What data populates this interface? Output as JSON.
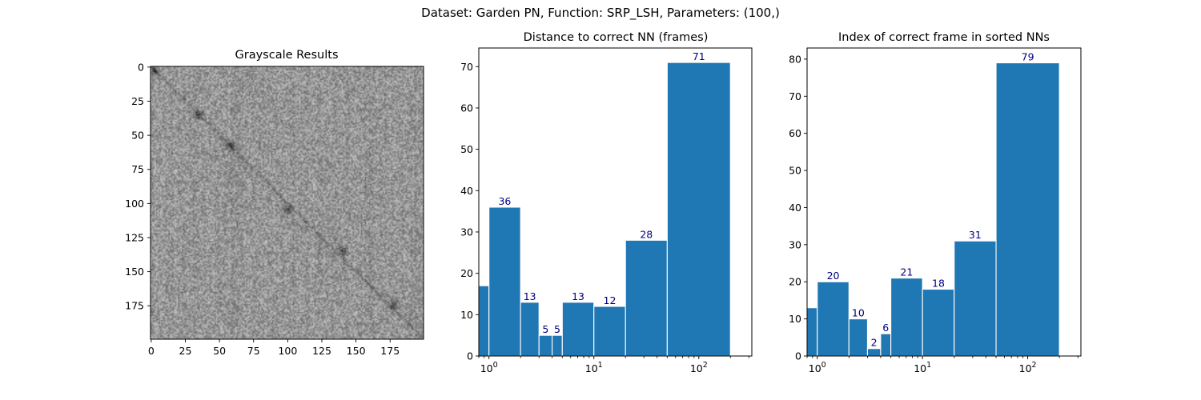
{
  "figure": {
    "suptitle": "Dataset:  Garden PN,  Function:  SRP_LSH, Parameters: (100,)"
  },
  "chart_data": [
    {
      "type": "heatmap",
      "title": "Grayscale Results",
      "colormap": "gray",
      "rows": 200,
      "cols": 200,
      "xlim": [
        0,
        200
      ],
      "ylim": [
        200,
        0
      ],
      "xticks": [
        0,
        25,
        50,
        75,
        100,
        125,
        150,
        175
      ],
      "yticks": [
        0,
        25,
        50,
        75,
        100,
        125,
        150,
        175
      ],
      "features": {
        "diagonal": "faint dark diagonal from (0,0) to (200,200)",
        "dark_spots": [
          [
            3,
            3
          ],
          [
            35,
            35
          ],
          [
            58,
            58
          ],
          [
            100,
            105
          ],
          [
            140,
            135
          ],
          [
            178,
            175
          ]
        ]
      }
    },
    {
      "type": "bar",
      "title": "Distance to correct NN (frames)",
      "xscale": "log",
      "xlim": [
        0.8,
        320
      ],
      "ylim": [
        0,
        74.5
      ],
      "yticks": [
        0,
        10,
        20,
        30,
        40,
        50,
        60,
        70
      ],
      "xticks": [
        "10^0",
        "10^1",
        "10^2"
      ],
      "bins": [
        {
          "x0": 0.5,
          "x1": 1,
          "value": 17,
          "label": ""
        },
        {
          "x0": 1,
          "x1": 2,
          "value": 36,
          "label": "36"
        },
        {
          "x0": 2,
          "x1": 3,
          "value": 13,
          "label": "13"
        },
        {
          "x0": 3,
          "x1": 4,
          "value": 5,
          "label": "5"
        },
        {
          "x0": 4,
          "x1": 5,
          "value": 5,
          "label": "5"
        },
        {
          "x0": 5,
          "x1": 10,
          "value": 13,
          "label": "13"
        },
        {
          "x0": 10,
          "x1": 20,
          "value": 12,
          "label": "12"
        },
        {
          "x0": 20,
          "x1": 50,
          "value": 28,
          "label": "28"
        },
        {
          "x0": 50,
          "x1": 200,
          "value": 71,
          "label": "71"
        }
      ]
    },
    {
      "type": "bar",
      "title": "Index of correct frame in sorted NNs",
      "xscale": "log",
      "xlim": [
        0.8,
        320
      ],
      "ylim": [
        0,
        83
      ],
      "yticks": [
        0,
        10,
        20,
        30,
        40,
        50,
        60,
        70,
        80
      ],
      "xticks": [
        "10^0",
        "10^1",
        "10^2"
      ],
      "bins": [
        {
          "x0": 0.5,
          "x1": 1,
          "value": 13,
          "label": ""
        },
        {
          "x0": 1,
          "x1": 2,
          "value": 20,
          "label": "20"
        },
        {
          "x0": 2,
          "x1": 3,
          "value": 10,
          "label": "10"
        },
        {
          "x0": 3,
          "x1": 4,
          "value": 2,
          "label": "2"
        },
        {
          "x0": 4,
          "x1": 5,
          "value": 6,
          "label": "6"
        },
        {
          "x0": 5,
          "x1": 10,
          "value": 21,
          "label": "21"
        },
        {
          "x0": 10,
          "x1": 20,
          "value": 18,
          "label": "18"
        },
        {
          "x0": 20,
          "x1": 50,
          "value": 31,
          "label": "31"
        },
        {
          "x0": 50,
          "x1": 200,
          "value": 79,
          "label": "79"
        }
      ]
    }
  ]
}
